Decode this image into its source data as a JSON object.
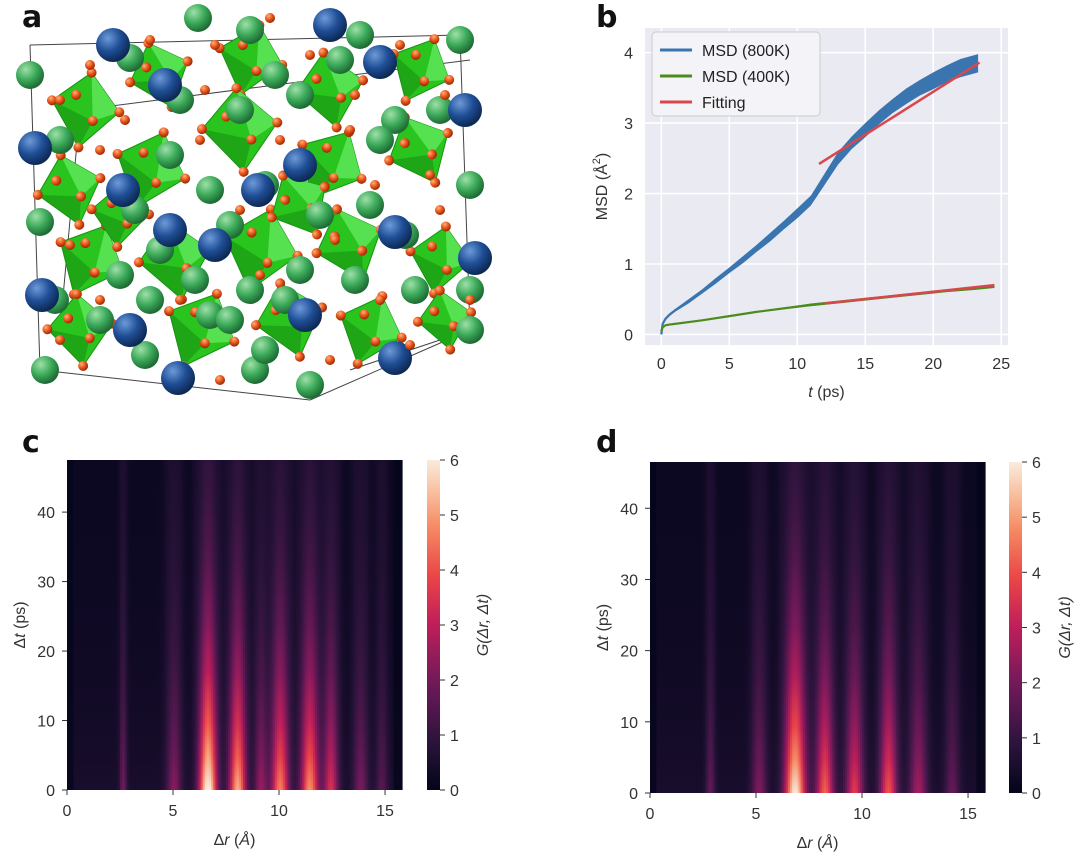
{
  "panels": {
    "a": "a",
    "b": "b",
    "c": "c",
    "d": "d"
  },
  "colors": {
    "blue": "#3a75b0",
    "green": "#4c8c1d",
    "red": "#d9474c",
    "plot_bg": "#e9eaf2",
    "grid": "#ffffff",
    "octa": "#29c41e",
    "octa_dark": "#189311",
    "atom_green": "#3caa5a",
    "atom_blue": "#1f4e96",
    "atom_orange": "#e8541a"
  },
  "chart_data": [
    {
      "panel": "b",
      "type": "line",
      "xlabel_italic": "t",
      "xlabel_rest": " (ps)",
      "ylabel": "MSD (Å",
      "ylabel_sup": "2",
      "ylabel_close": ")",
      "xlim": [
        -1.2,
        25.5
      ],
      "ylim": [
        -0.15,
        4.35
      ],
      "xticks": [
        0,
        5,
        10,
        15,
        20,
        25
      ],
      "yticks": [
        0,
        1,
        2,
        3,
        4
      ],
      "legend": [
        "MSD (800K)",
        "MSD (400K)",
        "Fitting"
      ],
      "series": [
        {
          "name": "MSD (800K)",
          "x": [
            0,
            0.1,
            0.3,
            0.6,
            1,
            2,
            3,
            4,
            5,
            6,
            7,
            8,
            9,
            10,
            11,
            12,
            13,
            14,
            15,
            16,
            17,
            18,
            19,
            20,
            21,
            22,
            23.3
          ],
          "y": [
            0.0,
            0.15,
            0.22,
            0.28,
            0.34,
            0.47,
            0.61,
            0.76,
            0.91,
            1.06,
            1.22,
            1.38,
            1.55,
            1.72,
            1.9,
            2.2,
            2.5,
            2.72,
            2.9,
            3.08,
            3.24,
            3.38,
            3.5,
            3.6,
            3.7,
            3.78,
            3.85
          ],
          "band": [
            0.0,
            0.02,
            0.02,
            0.02,
            0.02,
            0.03,
            0.03,
            0.04,
            0.04,
            0.05,
            0.05,
            0.06,
            0.06,
            0.07,
            0.07,
            0.08,
            0.09,
            0.09,
            0.1,
            0.1,
            0.1,
            0.11,
            0.11,
            0.12,
            0.12,
            0.13,
            0.13
          ]
        },
        {
          "name": "MSD (400K)",
          "x": [
            0,
            0.1,
            0.3,
            0.6,
            1,
            3,
            5,
            7,
            9,
            11,
            13,
            15,
            17,
            19,
            21,
            23,
            24.5
          ],
          "y": [
            0.05,
            0.1,
            0.13,
            0.14,
            0.15,
            0.2,
            0.26,
            0.32,
            0.37,
            0.42,
            0.46,
            0.5,
            0.54,
            0.58,
            0.62,
            0.65,
            0.68
          ],
          "band": [
            0.0,
            0.01,
            0.01,
            0.01,
            0.01,
            0.01,
            0.01,
            0.01,
            0.01,
            0.02,
            0.02,
            0.02,
            0.02,
            0.02,
            0.02,
            0.02,
            0.02
          ]
        },
        {
          "name": "Fitting 800K",
          "x": [
            11.6,
            23.4
          ],
          "y": [
            2.42,
            3.86
          ]
        },
        {
          "name": "Fitting 400K",
          "x": [
            12,
            24.5
          ],
          "y": [
            0.44,
            0.7
          ]
        }
      ]
    },
    {
      "panel": "c",
      "type": "heatmap",
      "xlabel_pre": "Δ",
      "xlabel_italic": "r",
      "xlabel_rest": " (",
      "xlabel_unit": "Å",
      "xlabel_close": ")",
      "ylabel_pre": "Δ",
      "ylabel_italic": "t",
      "ylabel_rest": " (ps)",
      "xlim": [
        0,
        15.8
      ],
      "ylim": [
        0,
        47.5
      ],
      "xticks": [
        0,
        5,
        10,
        15
      ],
      "yticks": [
        0,
        10,
        20,
        30,
        40
      ],
      "colorbar": {
        "label": "G(Δr, Δt)",
        "ticks": [
          0,
          1,
          2,
          3,
          4,
          5,
          6
        ],
        "range": [
          0,
          6
        ]
      },
      "peaks": [
        {
          "r": 2.6,
          "amp": 1.5,
          "w": 0.12
        },
        {
          "r": 5.0,
          "amp": 1.8,
          "w": 0.25
        },
        {
          "r": 6.6,
          "amp": 6.0,
          "w": 0.3
        },
        {
          "r": 8.0,
          "amp": 4.8,
          "w": 0.28
        },
        {
          "r": 9.1,
          "amp": 2.0,
          "w": 0.22
        },
        {
          "r": 10.0,
          "amp": 4.2,
          "w": 0.3
        },
        {
          "r": 11.4,
          "amp": 4.4,
          "w": 0.3
        },
        {
          "r": 12.4,
          "amp": 3.0,
          "w": 0.25
        },
        {
          "r": 13.8,
          "amp": 1.6,
          "w": 0.25
        },
        {
          "r": 14.8,
          "amp": 1.1,
          "w": 0.2
        }
      ]
    },
    {
      "panel": "d",
      "type": "heatmap",
      "xlabel_pre": "Δ",
      "xlabel_italic": "r",
      "xlabel_rest": " (",
      "xlabel_unit": "Å",
      "xlabel_close": ")",
      "ylabel_pre": "Δ",
      "ylabel_italic": "t",
      "ylabel_rest": " (ps)",
      "xlim": [
        0,
        15.8
      ],
      "ylim": [
        0,
        46.5
      ],
      "xticks": [
        0,
        5,
        10,
        15
      ],
      "yticks": [
        0,
        10,
        20,
        30,
        40
      ],
      "colorbar": {
        "label": "G(Δr, Δt)",
        "ticks": [
          0,
          1,
          2,
          3,
          4,
          5,
          6
        ],
        "range": [
          0,
          6
        ]
      },
      "peaks": [
        {
          "r": 2.8,
          "amp": 1.3,
          "w": 0.15
        },
        {
          "r": 5.1,
          "amp": 1.7,
          "w": 0.25
        },
        {
          "r": 6.8,
          "amp": 5.6,
          "w": 0.35
        },
        {
          "r": 8.2,
          "amp": 3.8,
          "w": 0.3
        },
        {
          "r": 9.6,
          "amp": 3.2,
          "w": 0.3
        },
        {
          "r": 11.2,
          "amp": 3.6,
          "w": 0.3
        },
        {
          "r": 12.6,
          "amp": 2.2,
          "w": 0.3
        },
        {
          "r": 14.2,
          "amp": 1.3,
          "w": 0.25
        }
      ]
    }
  ]
}
